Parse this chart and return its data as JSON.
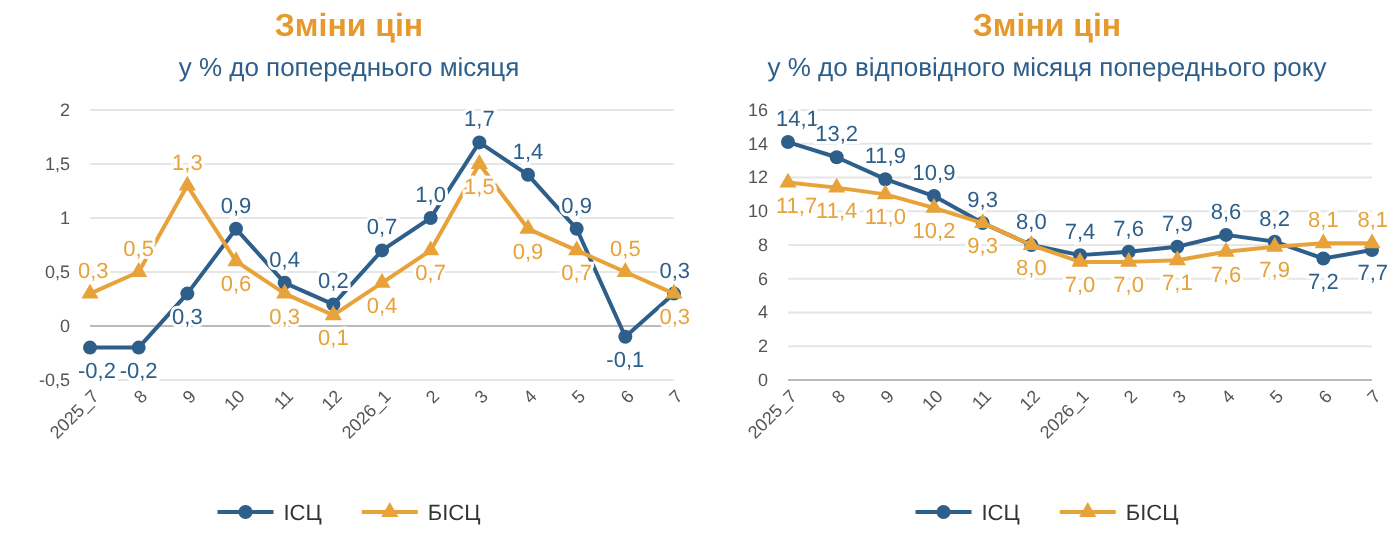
{
  "chart_data": [
    {
      "type": "line",
      "title": "Зміни цін",
      "subtitle": "у % до попереднього місяця",
      "categories": [
        "2025_7",
        "8",
        "9",
        "10",
        "11",
        "12",
        "2026_1",
        "2",
        "3",
        "4",
        "5",
        "6",
        "7"
      ],
      "series": [
        {
          "name": "ІСЦ",
          "color": "#2e5f8a",
          "marker": "circle",
          "values": [
            -0.2,
            -0.2,
            0.3,
            0.9,
            0.4,
            0.2,
            0.7,
            1.0,
            1.7,
            1.4,
            0.9,
            -0.1,
            0.3
          ],
          "value_labels": [
            "-0,2",
            "-0,2",
            "0,3",
            "0,9",
            "0,4",
            "0,2",
            "0,7",
            "1,0",
            "1,7",
            "1,4",
            "0,9",
            "-0,1",
            "0,3"
          ]
        },
        {
          "name": "БІСЦ",
          "color": "#e8a23a",
          "marker": "triangle",
          "values": [
            0.3,
            0.5,
            1.3,
            0.6,
            0.3,
            0.1,
            0.4,
            0.7,
            1.5,
            0.9,
            0.7,
            0.5,
            0.3
          ],
          "value_labels": [
            "0,3",
            "0,5",
            "1,3",
            "0,6",
            "0,3",
            "0,1",
            "0,4",
            "0,7",
            "1,5",
            "0,9",
            "0,7",
            "0,5",
            "0,3"
          ]
        }
      ],
      "ylim": [
        -0.5,
        2
      ],
      "yticks": [
        {
          "value": -0.5,
          "label": "-0,5"
        },
        0,
        {
          "value": 0.5,
          "label": "0,5"
        },
        1,
        {
          "value": 1.5,
          "label": "1,5"
        },
        2
      ],
      "grid": "y",
      "legend": "bottom"
    },
    {
      "type": "line",
      "title": "Зміни цін",
      "subtitle": "у % до відповідного місяця попереднього року",
      "categories": [
        "2025_7",
        "8",
        "9",
        "10",
        "11",
        "12",
        "2026_1",
        "2",
        "3",
        "4",
        "5",
        "6",
        "7"
      ],
      "series": [
        {
          "name": "ІСЦ",
          "color": "#2e5f8a",
          "marker": "circle",
          "values": [
            14.1,
            13.2,
            11.9,
            10.9,
            9.3,
            8.0,
            7.4,
            7.6,
            7.9,
            8.6,
            8.2,
            7.2,
            7.7
          ],
          "value_labels": [
            "14,1",
            "13,2",
            "11,9",
            "10,9",
            "9,3",
            "8,0",
            "7,4",
            "7,6",
            "7,9",
            "8,6",
            "8,2",
            "7,2",
            "7,7"
          ]
        },
        {
          "name": "БІСЦ",
          "color": "#e8a23a",
          "marker": "triangle",
          "values": [
            11.7,
            11.4,
            11.0,
            10.2,
            9.3,
            8.0,
            7.0,
            7.0,
            7.1,
            7.6,
            7.9,
            8.1,
            8.1
          ],
          "value_labels": [
            "11,7",
            "11,4",
            "11,0",
            "10,2",
            "9,3",
            "8,0",
            "7,0",
            "7,0",
            "7,1",
            "7,6",
            "7,9",
            "8,1",
            "8,1"
          ]
        }
      ],
      "ylim": [
        0,
        16
      ],
      "yticks": [
        0,
        2,
        4,
        6,
        8,
        10,
        12,
        14,
        16
      ],
      "grid": "y",
      "legend": "bottom"
    }
  ]
}
